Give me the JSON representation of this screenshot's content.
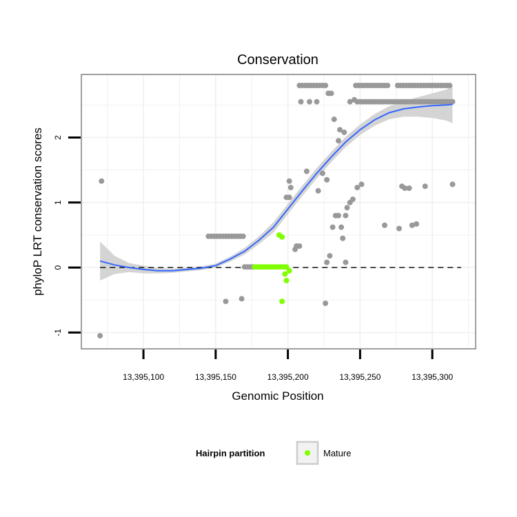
{
  "chart_data": {
    "type": "scatter",
    "title": "Conservation",
    "xlabel": "Genomic Position",
    "ylabel": "phyloP LRT conservation scores",
    "xlim": [
      13395057,
      13395330
    ],
    "ylim": [
      -1.25,
      2.97
    ],
    "x_ticks": [
      13395100,
      13395150,
      13395200,
      13395250,
      13395300
    ],
    "x_tick_labels": [
      "13,395,100",
      "13,395,150",
      "13,395,200",
      "13,395,250",
      "13,395,300"
    ],
    "y_ticks": [
      -1,
      0,
      1,
      2
    ],
    "y_tick_labels": [
      "-1",
      "0",
      "1",
      "2"
    ],
    "reference_line_y": 0,
    "grid": true,
    "legend": {
      "title": "Hairpin partition",
      "position": "bottom",
      "entries": [
        {
          "label": "Mature",
          "color": "#80ff00"
        }
      ]
    },
    "colors": {
      "other_points": "#999999",
      "mature": "#80ff00",
      "smooth_line": "#3366ff",
      "confidence_band": "#d4d4d4",
      "panel_border": "#7f7f7f",
      "grid": "#f0f0f0"
    },
    "series": [
      {
        "points": [
          [
            13395070,
            -1.05
          ],
          [
            13395071,
            1.33
          ],
          [
            13395145,
            0.48
          ],
          [
            13395147,
            0.48
          ],
          [
            13395149,
            0.48
          ],
          [
            13395151,
            0.48
          ],
          [
            13395153,
            0.48
          ],
          [
            13395155,
            0.48
          ],
          [
            13395157,
            0.48
          ],
          [
            13395159,
            0.48
          ],
          [
            13395161,
            0.48
          ],
          [
            13395163,
            0.48
          ],
          [
            13395165,
            0.48
          ],
          [
            13395167,
            0.48
          ],
          [
            13395169,
            0.48
          ],
          [
            13395157,
            -0.52
          ],
          [
            13395168,
            -0.48
          ],
          [
            13395170,
            0.01
          ],
          [
            13395172,
            0.01
          ],
          [
            13395174,
            0.01
          ],
          [
            13395176,
            0.01
          ],
          [
            13395199,
            1.08
          ],
          [
            13395201,
            1.33
          ],
          [
            13395202,
            1.23
          ],
          [
            13395201,
            1.08
          ],
          [
            13395205,
            0.28
          ],
          [
            13395206,
            0.33
          ],
          [
            13395208,
            0.33
          ],
          [
            13395208,
            2.8
          ],
          [
            13395210,
            2.8
          ],
          [
            13395212,
            2.8
          ],
          [
            13395214,
            2.8
          ],
          [
            13395216,
            2.8
          ],
          [
            13395218,
            2.8
          ],
          [
            13395220,
            2.8
          ],
          [
            13395222,
            2.8
          ],
          [
            13395224,
            2.8
          ],
          [
            13395226,
            2.8
          ],
          [
            13395209,
            2.55
          ],
          [
            13395215,
            2.55
          ],
          [
            13395220,
            2.55
          ],
          [
            13395213,
            1.48
          ],
          [
            13395221,
            1.18
          ],
          [
            13395224,
            1.45
          ],
          [
            13395227,
            1.35
          ],
          [
            13395228,
            2.68
          ],
          [
            13395230,
            2.68
          ],
          [
            13395232,
            2.28
          ],
          [
            13395226,
            -0.55
          ],
          [
            13395227,
            0.08
          ],
          [
            13395229,
            0.18
          ],
          [
            13395231,
            0.62
          ],
          [
            13395233,
            0.8
          ],
          [
            13395235,
            0.8
          ],
          [
            13395235,
            1.95
          ],
          [
            13395236,
            2.12
          ],
          [
            13395239,
            2.08
          ],
          [
            13395237,
            0.62
          ],
          [
            13395238,
            0.45
          ],
          [
            13395240,
            0.8
          ],
          [
            13395240,
            0.08
          ],
          [
            13395241,
            0.92
          ],
          [
            13395243,
            1.0
          ],
          [
            13395245,
            1.05
          ],
          [
            13395243,
            2.55
          ],
          [
            13395246,
            2.58
          ],
          [
            13395248,
            1.23
          ],
          [
            13395251,
            1.28
          ],
          [
            13395247,
            2.8
          ],
          [
            13395249,
            2.8
          ],
          [
            13395251,
            2.8
          ],
          [
            13395253,
            2.8
          ],
          [
            13395255,
            2.8
          ],
          [
            13395257,
            2.8
          ],
          [
            13395259,
            2.8
          ],
          [
            13395261,
            2.8
          ],
          [
            13395263,
            2.8
          ],
          [
            13395265,
            2.8
          ],
          [
            13395267,
            2.8
          ],
          [
            13395269,
            2.8
          ],
          [
            13395248,
            2.55
          ],
          [
            13395250,
            2.55
          ],
          [
            13395252,
            2.55
          ],
          [
            13395254,
            2.55
          ],
          [
            13395256,
            2.55
          ],
          [
            13395258,
            2.55
          ],
          [
            13395260,
            2.55
          ],
          [
            13395262,
            2.55
          ],
          [
            13395264,
            2.55
          ],
          [
            13395266,
            2.55
          ],
          [
            13395268,
            2.55
          ],
          [
            13395270,
            2.55
          ],
          [
            13395272,
            2.55
          ],
          [
            13395274,
            2.55
          ],
          [
            13395276,
            2.55
          ],
          [
            13395278,
            2.55
          ],
          [
            13395280,
            2.55
          ],
          [
            13395282,
            2.55
          ],
          [
            13395284,
            2.55
          ],
          [
            13395286,
            2.55
          ],
          [
            13395288,
            2.55
          ],
          [
            13395290,
            2.55
          ],
          [
            13395292,
            2.55
          ],
          [
            13395294,
            2.55
          ],
          [
            13395296,
            2.55
          ],
          [
            13395298,
            2.55
          ],
          [
            13395300,
            2.55
          ],
          [
            13395302,
            2.55
          ],
          [
            13395304,
            2.55
          ],
          [
            13395306,
            2.55
          ],
          [
            13395308,
            2.55
          ],
          [
            13395310,
            2.55
          ],
          [
            13395312,
            2.55
          ],
          [
            13395314,
            2.55
          ],
          [
            13395267,
            0.65
          ],
          [
            13395277,
            0.6
          ],
          [
            13395279,
            1.25
          ],
          [
            13395281,
            1.22
          ],
          [
            13395284,
            1.22
          ],
          [
            13395286,
            0.65
          ],
          [
            13395289,
            0.67
          ],
          [
            13395295,
            1.25
          ],
          [
            13395276,
            2.8
          ],
          [
            13395278,
            2.8
          ],
          [
            13395280,
            2.8
          ],
          [
            13395282,
            2.8
          ],
          [
            13395284,
            2.8
          ],
          [
            13395286,
            2.8
          ],
          [
            13395288,
            2.8
          ],
          [
            13395290,
            2.8
          ],
          [
            13395292,
            2.8
          ],
          [
            13395294,
            2.8
          ],
          [
            13395296,
            2.8
          ],
          [
            13395298,
            2.8
          ],
          [
            13395300,
            2.8
          ],
          [
            13395302,
            2.8
          ],
          [
            13395304,
            2.8
          ],
          [
            13395306,
            2.8
          ],
          [
            13395308,
            2.8
          ],
          [
            13395310,
            2.8
          ],
          [
            13395312,
            2.8
          ],
          [
            13395314,
            1.28
          ]
        ]
      },
      {
        "name": "Mature",
        "points": [
          [
            13395177,
            0.01
          ],
          [
            13395179,
            0.01
          ],
          [
            13395181,
            0.01
          ],
          [
            13395183,
            0.01
          ],
          [
            13395185,
            0.01
          ],
          [
            13395187,
            0.01
          ],
          [
            13395189,
            0.01
          ],
          [
            13395191,
            0.01
          ],
          [
            13395193,
            0.01
          ],
          [
            13395195,
            0.01
          ],
          [
            13395197,
            0.01
          ],
          [
            13395199,
            0.01
          ],
          [
            13395194,
            0.5
          ],
          [
            13395196,
            0.47
          ],
          [
            13395196,
            -0.52
          ],
          [
            13395198,
            -0.1
          ],
          [
            13395199,
            -0.2
          ],
          [
            13395201,
            -0.05
          ]
        ]
      }
    ],
    "smooth_line": {
      "x": [
        13395070,
        13395080,
        13395090,
        13395100,
        13395110,
        13395120,
        13395130,
        13395140,
        13395150,
        13395160,
        13395170,
        13395180,
        13395190,
        13395200,
        13395210,
        13395220,
        13395230,
        13395240,
        13395250,
        13395260,
        13395270,
        13395280,
        13395290,
        13395300,
        13395310,
        13395314
      ],
      "y": [
        0.1,
        0.04,
        0.0,
        -0.03,
        -0.05,
        -0.05,
        -0.03,
        -0.01,
        0.03,
        0.13,
        0.25,
        0.42,
        0.62,
        0.9,
        1.18,
        1.45,
        1.7,
        1.93,
        2.12,
        2.27,
        2.38,
        2.44,
        2.47,
        2.49,
        2.5,
        2.51
      ],
      "lower": [
        -0.2,
        -0.1,
        -0.07,
        -0.09,
        -0.09,
        -0.08,
        -0.06,
        -0.04,
        0.0,
        0.09,
        0.2,
        0.36,
        0.54,
        0.82,
        1.1,
        1.37,
        1.62,
        1.85,
        2.04,
        2.18,
        2.28,
        2.32,
        2.32,
        2.3,
        2.26,
        2.22
      ],
      "upper": [
        0.4,
        0.18,
        0.07,
        0.03,
        -0.01,
        -0.02,
        0.0,
        0.02,
        0.06,
        0.17,
        0.3,
        0.48,
        0.7,
        0.98,
        1.26,
        1.53,
        1.78,
        2.01,
        2.2,
        2.36,
        2.48,
        2.56,
        2.62,
        2.68,
        2.74,
        2.8
      ]
    }
  }
}
